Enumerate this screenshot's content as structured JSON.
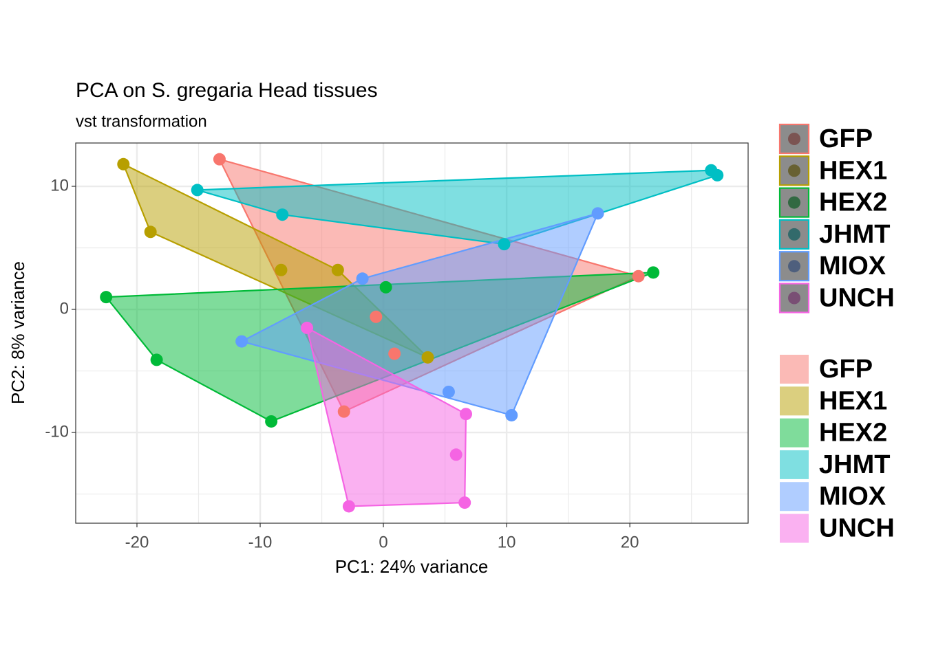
{
  "chart_data": {
    "type": "scatter",
    "title": "PCA on S. gregaria Head tissues",
    "subtitle": "vst transformation",
    "x_label": "PC1: 24% variance",
    "y_label": "PC2: 8% variance",
    "xlim": [
      -24.97,
      29.6
    ],
    "ylim": [
      -17.37,
      13.52
    ],
    "xticks": [
      -20,
      -10,
      0,
      10,
      20
    ],
    "yticks": [
      -10,
      0,
      10
    ],
    "grid": true,
    "hull": true,
    "series": [
      {
        "name": "GFP",
        "color": "#F8766D",
        "x": [
          -13.3,
          20.7,
          -3.2,
          0.9,
          -0.6
        ],
        "values": [
          12.2,
          2.7,
          -8.3,
          -3.6,
          -0.6
        ]
      },
      {
        "name": "HEX1",
        "color": "#B79F00",
        "x": [
          -21.1,
          -18.9,
          -8.3,
          -3.7,
          3.6
        ],
        "values": [
          11.8,
          6.3,
          3.2,
          3.2,
          -3.9
        ]
      },
      {
        "name": "HEX2",
        "color": "#00BA38",
        "x": [
          -22.5,
          -18.4,
          -9.1,
          21.9,
          0.2
        ],
        "values": [
          1.0,
          -4.1,
          -9.1,
          3.0,
          1.8
        ]
      },
      {
        "name": "JHMT",
        "color": "#00BFC4",
        "x": [
          -15.1,
          26.6,
          27.1,
          9.8,
          -8.2
        ],
        "values": [
          9.7,
          11.3,
          10.9,
          5.3,
          7.7
        ]
      },
      {
        "name": "MIOX",
        "color": "#619CFF",
        "x": [
          17.4,
          10.4,
          -11.5,
          5.3,
          -1.7
        ],
        "values": [
          7.8,
          -8.6,
          -2.6,
          -6.7,
          2.5
        ]
      },
      {
        "name": "UNCH",
        "color": "#F564E3",
        "x": [
          -6.2,
          6.7,
          5.9,
          6.6,
          -2.8
        ],
        "values": [
          -1.5,
          -8.5,
          -11.8,
          -15.7,
          -16.0
        ]
      }
    ]
  }
}
